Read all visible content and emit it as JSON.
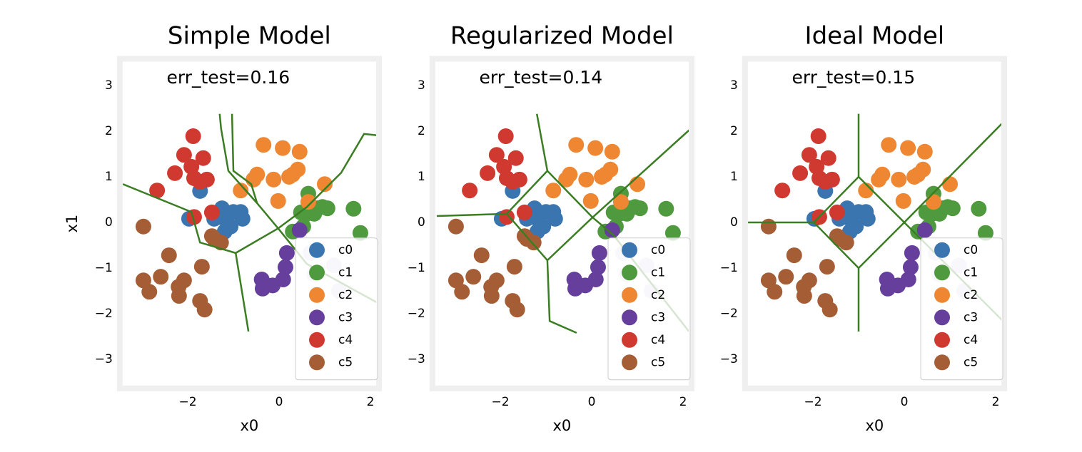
{
  "chart_data": [
    {
      "type": "scatter",
      "title": "Simple Model",
      "annotation": "err_test=0.16",
      "xlabel": "x0",
      "ylabel": "x1",
      "xlim": [
        -3.55,
        2.25
      ],
      "ylim": [
        -3.7,
        3.65
      ],
      "xticks": [
        {
          "value": -2,
          "label": "−2"
        },
        0,
        2
      ],
      "yticks": [
        {
          "value": -3,
          "label": "−3"
        },
        {
          "value": -2,
          "label": "−2"
        },
        {
          "value": -1,
          "label": "−1"
        },
        0,
        1,
        2,
        3
      ],
      "legend": "lower right",
      "boundary_color": "#3a7d22",
      "series": [
        {
          "name": "c0",
          "color": "#3a75b0",
          "x": [
            -1.73,
            -1.25,
            -1.0,
            -0.84,
            -0.8,
            -1.06,
            -1.19,
            -1.42,
            -1.97,
            -1.25
          ],
          "y": [
            0.69,
            0.31,
            0.23,
            0.23,
            0.08,
            -0.09,
            -0.2,
            0.08,
            0.08,
            0.11
          ]
        },
        {
          "name": "c1",
          "color": "#4f9a3e",
          "x": [
            0.64,
            0.61,
            0.84,
            0.95,
            1.06,
            1.63,
            1.78,
            0.3,
            0.53,
            0.77,
            0.48
          ],
          "y": [
            0.63,
            0.19,
            0.31,
            0.34,
            0.31,
            0.3,
            -0.23,
            -0.2,
            -0.09,
            0.19,
            0.22
          ]
        },
        {
          "name": "c2",
          "color": "#ef8632",
          "x": [
            -0.34,
            0.08,
            0.45,
            0.41,
            0.22,
            -0.12,
            -0.48,
            -0.56,
            -0.84,
            -0.02,
            1.0,
            0.64,
            0.3
          ],
          "y": [
            1.7,
            1.63,
            1.55,
            1.16,
            1.0,
            0.94,
            1.05,
            0.94,
            0.7,
            0.47,
            0.84,
            0.45,
            1.05
          ]
        },
        {
          "name": "c3",
          "color": "#653f9b",
          "x": [
            0.17,
            0.14,
            0.09,
            -0.14,
            -0.36,
            -0.38,
            0.45
          ],
          "y": [
            -0.67,
            -0.98,
            -1.25,
            -1.38,
            -1.45,
            -1.25,
            -0.17
          ]
        },
        {
          "name": "c4",
          "color": "#d03930",
          "x": [
            -1.88,
            -2.08,
            -1.66,
            -1.92,
            -2.28,
            -1.86,
            -1.58,
            -1.73,
            -2.67,
            -1.47,
            -1.86
          ],
          "y": [
            1.89,
            1.48,
            1.41,
            1.22,
            1.08,
            0.97,
            0.94,
            0.89,
            0.7,
            0.22,
            0.12
          ]
        },
        {
          "name": "c5",
          "color": "#a55d36",
          "x": [
            -2.97,
            -2.41,
            -2.59,
            -2.97,
            -2.84,
            -2.08,
            -2.2,
            -2.19,
            -1.69,
            -1.73,
            -1.63,
            -1.47,
            -1.27,
            -1.42
          ],
          "y": [
            -0.09,
            -0.72,
            -1.19,
            -1.27,
            -1.52,
            -1.27,
            -1.41,
            -1.61,
            -0.97,
            -1.72,
            -1.91,
            -0.3,
            -0.44,
            -0.36
          ]
        },
        {
          "color": "#dcd5e8",
          "x": [
            0.77,
            1.2,
            1.31,
            0.69
          ],
          "y": [
            -1.14,
            -0.94,
            -1.5,
            -0.67
          ]
        }
      ],
      "boundaries": [
        {
          "x": [
            -3.42,
            -1.92,
            -1.73,
            -0.95,
            -0.02,
            0.61,
            1.36,
            1.86,
            2.14
          ],
          "y": [
            0.84,
            0.23,
            -0.44,
            -0.67,
            -0.13,
            0.34,
            1.09,
            1.94,
            1.91
          ]
        },
        {
          "x": [
            -1.3,
            -1.27,
            -1.11,
            -0.48,
            -0.02
          ],
          "y": [
            2.38,
            2.06,
            1.13,
            0.42,
            -0.13
          ]
        },
        {
          "x": [
            -1.03,
            -1.0,
            -0.61,
            -0.48
          ],
          "y": [
            2.38,
            1.13,
            0.84,
            0.42
          ]
        },
        {
          "x": [
            -0.95,
            -0.67
          ],
          "y": [
            -0.67,
            -2.39
          ]
        },
        {
          "x": [
            -0.02,
            0.61,
            2.17
          ],
          "y": [
            -0.13,
            -0.91,
            -1.77
          ]
        }
      ]
    },
    {
      "type": "scatter",
      "title": "Regularized Model",
      "annotation": "err_test=0.14",
      "xlabel": "x0",
      "xlim": [
        -3.55,
        2.25
      ],
      "ylim": [
        -3.7,
        3.65
      ],
      "xticks": [
        {
          "value": -2,
          "label": "−2"
        },
        0,
        2
      ],
      "yticks": [
        {
          "value": -3,
          "label": "−3"
        },
        {
          "value": -2,
          "label": "−2"
        },
        {
          "value": -1,
          "label": "−1"
        },
        0,
        1,
        2,
        3
      ],
      "legend": "lower right",
      "boundary_color": "#3a7d22",
      "series": [
        {
          "name": "c0",
          "color": "#3a75b0",
          "x": [
            -1.73,
            -1.25,
            -1.0,
            -0.84,
            -0.8,
            -1.06,
            -1.19,
            -1.42,
            -1.97,
            -1.25
          ],
          "y": [
            0.69,
            0.31,
            0.23,
            0.23,
            0.08,
            -0.09,
            -0.2,
            0.08,
            0.08,
            0.11
          ]
        },
        {
          "name": "c1",
          "color": "#4f9a3e",
          "x": [
            0.64,
            0.61,
            0.84,
            0.95,
            1.06,
            1.63,
            1.78,
            0.3,
            0.53,
            0.77,
            0.48
          ],
          "y": [
            0.63,
            0.19,
            0.31,
            0.34,
            0.31,
            0.3,
            -0.23,
            -0.2,
            -0.09,
            0.19,
            0.22
          ]
        },
        {
          "name": "c2",
          "color": "#ef8632",
          "x": [
            -0.34,
            0.08,
            0.45,
            0.41,
            0.22,
            -0.12,
            -0.48,
            -0.56,
            -0.84,
            -0.02,
            1.0,
            0.64,
            0.3
          ],
          "y": [
            1.7,
            1.63,
            1.55,
            1.16,
            1.0,
            0.94,
            1.05,
            0.94,
            0.7,
            0.47,
            0.84,
            0.45,
            1.05
          ]
        },
        {
          "name": "c3",
          "color": "#653f9b",
          "x": [
            0.17,
            0.14,
            0.09,
            -0.14,
            -0.36,
            -0.38,
            0.45
          ],
          "y": [
            -0.67,
            -0.98,
            -1.25,
            -1.38,
            -1.45,
            -1.25,
            -0.17
          ]
        },
        {
          "name": "c4",
          "color": "#d03930",
          "x": [
            -1.88,
            -2.08,
            -1.66,
            -1.92,
            -2.28,
            -1.86,
            -1.58,
            -1.73,
            -2.67,
            -1.47,
            -1.86
          ],
          "y": [
            1.89,
            1.48,
            1.41,
            1.22,
            1.08,
            0.97,
            0.94,
            0.89,
            0.7,
            0.22,
            0.12
          ]
        },
        {
          "name": "c5",
          "color": "#a55d36",
          "x": [
            -2.97,
            -2.41,
            -2.59,
            -2.97,
            -2.84,
            -2.08,
            -2.2,
            -2.19,
            -1.69,
            -1.73,
            -1.63,
            -1.47,
            -1.27,
            -1.42
          ],
          "y": [
            -0.09,
            -0.72,
            -1.19,
            -1.27,
            -1.52,
            -1.27,
            -1.41,
            -1.61,
            -0.97,
            -1.72,
            -1.91,
            -0.3,
            -0.44,
            -0.36
          ]
        },
        {
          "color": "#dcd5e8",
          "x": [
            0.77,
            1.2,
            1.31,
            0.69
          ],
          "y": [
            -1.14,
            -0.94,
            -1.5,
            -0.67
          ]
        }
      ],
      "boundaries": [
        {
          "x": [
            -3.39,
            -1.86,
            -0.97,
            0.02,
            -0.97,
            -1.86
          ],
          "y": [
            0.14,
            0.19,
            1.13,
            0.11,
            -0.83,
            0.19
          ]
        },
        {
          "x": [
            -0.97,
            -1.2
          ],
          "y": [
            1.13,
            2.38
          ]
        },
        {
          "x": [
            0.02,
            2.13
          ],
          "y": [
            0.11,
            2.02
          ]
        },
        {
          "x": [
            -0.97,
            -0.92,
            -0.33
          ],
          "y": [
            -0.83,
            -2.16,
            -2.42
          ]
        },
        {
          "x": [
            0.02,
            0.48,
            2.13
          ],
          "y": [
            0.11,
            -0.28,
            -2.39
          ]
        }
      ]
    },
    {
      "type": "scatter",
      "title": "Ideal Model",
      "annotation": "err_test=0.15",
      "xlabel": "x0",
      "xlim": [
        -3.55,
        2.25
      ],
      "ylim": [
        -3.7,
        3.65
      ],
      "xticks": [
        {
          "value": -2,
          "label": "−2"
        },
        0,
        2
      ],
      "yticks": [
        {
          "value": -3,
          "label": "−3"
        },
        {
          "value": -2,
          "label": "−2"
        },
        {
          "value": -1,
          "label": "−1"
        },
        0,
        1,
        2,
        3
      ],
      "legend": "lower right",
      "boundary_color": "#3a7d22",
      "series": [
        {
          "name": "c0",
          "color": "#3a75b0",
          "x": [
            -1.73,
            -1.25,
            -1.0,
            -0.84,
            -0.8,
            -1.06,
            -1.19,
            -1.42,
            -1.97,
            -1.25
          ],
          "y": [
            0.69,
            0.31,
            0.23,
            0.23,
            0.08,
            -0.09,
            -0.2,
            0.08,
            0.08,
            0.11
          ]
        },
        {
          "name": "c1",
          "color": "#4f9a3e",
          "x": [
            0.64,
            0.61,
            0.84,
            0.95,
            1.06,
            1.63,
            1.78,
            0.3,
            0.53,
            0.77,
            0.48
          ],
          "y": [
            0.63,
            0.19,
            0.31,
            0.34,
            0.31,
            0.3,
            -0.23,
            -0.2,
            -0.09,
            0.19,
            0.22
          ]
        },
        {
          "name": "c2",
          "color": "#ef8632",
          "x": [
            -0.34,
            0.08,
            0.45,
            0.41,
            0.22,
            -0.12,
            -0.48,
            -0.56,
            -0.84,
            -0.02,
            1.0,
            0.64,
            0.3
          ],
          "y": [
            1.7,
            1.63,
            1.55,
            1.16,
            1.0,
            0.94,
            1.05,
            0.94,
            0.7,
            0.47,
            0.84,
            0.45,
            1.05
          ]
        },
        {
          "name": "c3",
          "color": "#653f9b",
          "x": [
            0.17,
            0.14,
            0.09,
            -0.14,
            -0.36,
            -0.38,
            0.45
          ],
          "y": [
            -0.67,
            -0.98,
            -1.25,
            -1.38,
            -1.45,
            -1.25,
            -0.17
          ]
        },
        {
          "name": "c4",
          "color": "#d03930",
          "x": [
            -1.88,
            -2.08,
            -1.66,
            -1.92,
            -2.28,
            -1.86,
            -1.58,
            -1.73,
            -2.67,
            -1.47,
            -1.86
          ],
          "y": [
            1.89,
            1.48,
            1.41,
            1.22,
            1.08,
            0.97,
            0.94,
            0.89,
            0.7,
            0.22,
            0.12
          ]
        },
        {
          "name": "c5",
          "color": "#a55d36",
          "x": [
            -2.97,
            -2.41,
            -2.59,
            -2.97,
            -2.84,
            -2.08,
            -2.2,
            -2.19,
            -1.69,
            -1.73,
            -1.63,
            -1.47,
            -1.27,
            -1.42
          ],
          "y": [
            -0.09,
            -0.72,
            -1.19,
            -1.27,
            -1.52,
            -1.27,
            -1.41,
            -1.61,
            -0.97,
            -1.72,
            -1.91,
            -0.3,
            -0.44,
            -0.36
          ]
        },
        {
          "color": "#dcd5e8",
          "x": [
            0.77,
            1.2,
            1.31,
            0.69
          ],
          "y": [
            -1.14,
            -0.94,
            -1.5,
            -0.67
          ]
        }
      ],
      "boundaries": [
        {
          "x": [
            -3.42,
            -1.98,
            -1.0,
            0,
            -1.0,
            -1.98
          ],
          "y": [
            0,
            0,
            1.0,
            0,
            -1.0,
            0
          ]
        },
        {
          "x": [
            -1.0,
            -1.0
          ],
          "y": [
            1.0,
            2.38
          ]
        },
        {
          "x": [
            -1.0,
            -1.0
          ],
          "y": [
            -1.0,
            -2.39
          ]
        },
        {
          "x": [
            0,
            2.16
          ],
          "y": [
            0,
            2.19
          ]
        },
        {
          "x": [
            0,
            2.16
          ],
          "y": [
            0,
            -2.16
          ]
        }
      ]
    }
  ]
}
